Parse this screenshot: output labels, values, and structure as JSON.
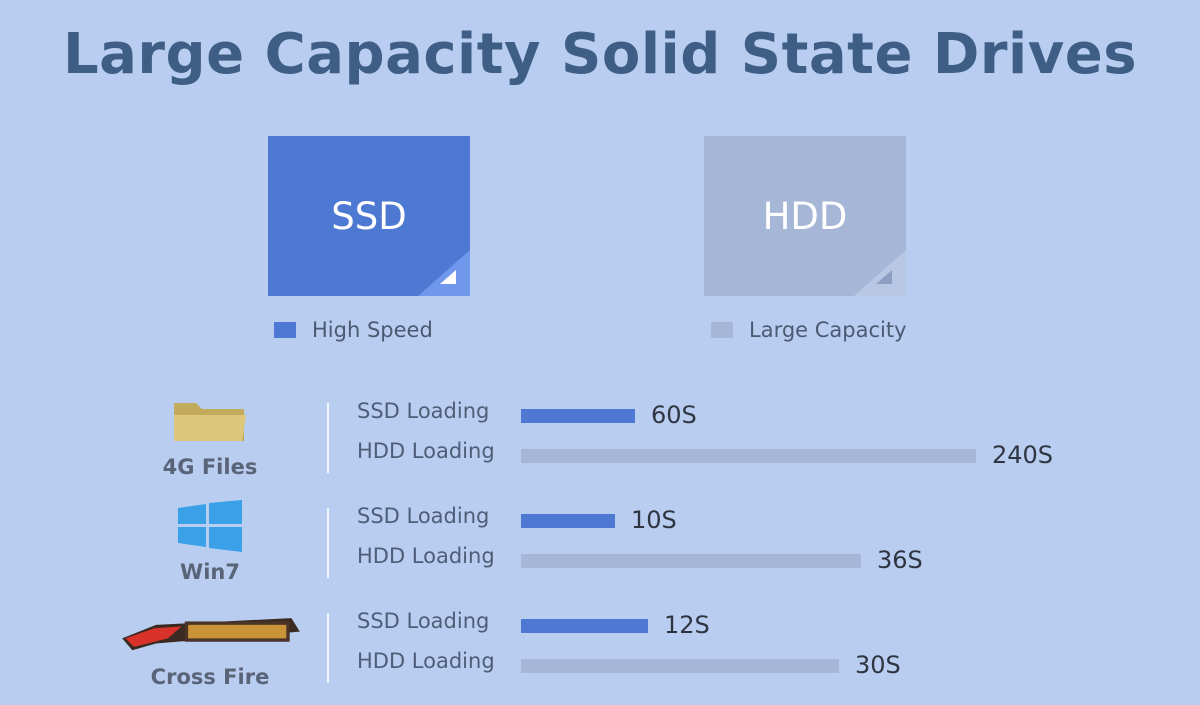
{
  "page": {
    "title": "Large Capacity Solid State Drives"
  },
  "comparison": {
    "ssd": {
      "label": "SSD",
      "legend": "High Speed",
      "color": "#4e79d2"
    },
    "hdd": {
      "label": "HDD",
      "legend": "Large Capacity",
      "color": "#a6b6d7"
    }
  },
  "chart_data": {
    "type": "bar",
    "orientation": "horizontal",
    "unit": "S",
    "categories": [
      "4G Files",
      "Win7",
      "Cross Fire"
    ],
    "series": [
      {
        "name": "SSD Loading",
        "values": [
          60,
          10,
          12
        ],
        "labels": [
          "60S",
          "10S",
          "12S"
        ],
        "color": "#4e79d2"
      },
      {
        "name": "HDD Loading",
        "values": [
          240,
          36,
          30
        ],
        "labels": [
          "240S",
          "36S",
          "30S"
        ],
        "color": "#a6b6d7"
      }
    ],
    "icons": [
      "folder-icon",
      "windows-logo-icon",
      "cross-fire-logo-icon"
    ]
  }
}
